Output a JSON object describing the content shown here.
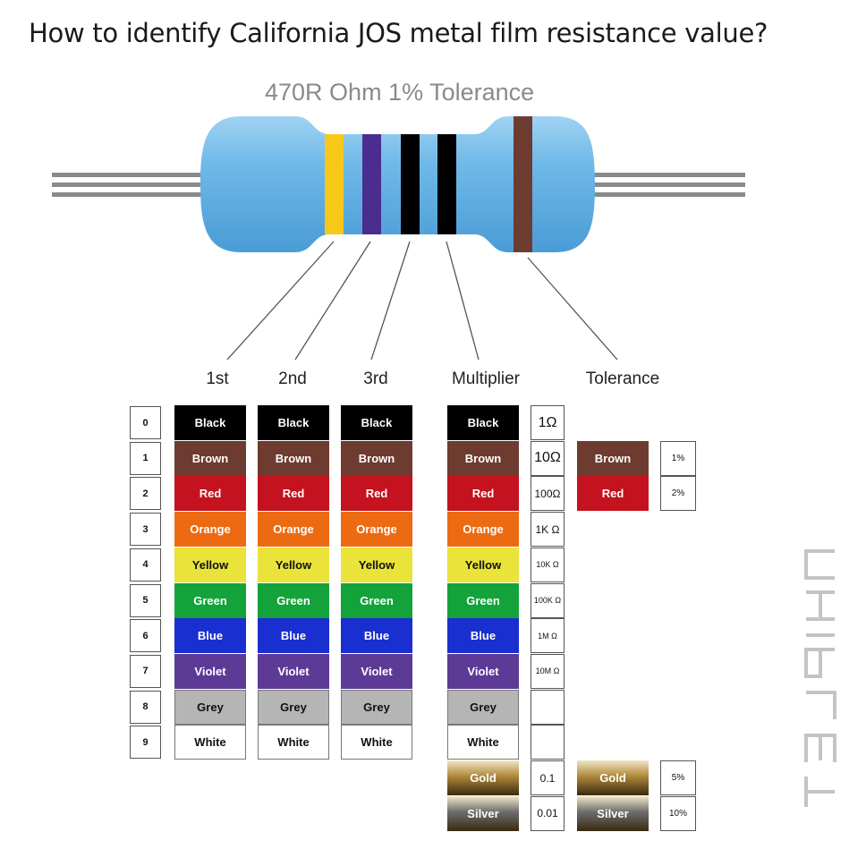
{
  "title": "How to identify California JOS metal film resistance value?",
  "resistor_label": "470R Ohm 1% Tolerance",
  "column_headers": [
    "1st",
    "2nd",
    "3rd",
    "Multiplier",
    "Tolerance"
  ],
  "digit_numbers": [
    "0",
    "1",
    "2",
    "3",
    "4",
    "5",
    "6",
    "7",
    "8",
    "9"
  ],
  "digit_bands": [
    {
      "label": "Black",
      "color": "#000000"
    },
    {
      "label": "Brown",
      "color": "#6e3b30"
    },
    {
      "label": "Red",
      "color": "#c4121e"
    },
    {
      "label": "Orange",
      "color": "#ec6b12"
    },
    {
      "label": "Yellow",
      "color": "#e9e33a"
    },
    {
      "label": "Green",
      "color": "#13a33a"
    },
    {
      "label": "Blue",
      "color": "#1a2fcf"
    },
    {
      "label": "Violet",
      "color": "#5c3a96"
    },
    {
      "label": "Grey",
      "color": "#b5b5b5"
    },
    {
      "label": "White",
      "color": "#ffffff"
    }
  ],
  "multiplier_values": [
    "1Ω",
    "10Ω",
    "100Ω",
    "1K Ω",
    "10K Ω",
    "100K Ω",
    "1M Ω",
    "10M Ω",
    "",
    ""
  ],
  "multiplier_extra": [
    {
      "label": "Gold",
      "value": "0.1",
      "color": "#b08a3a"
    },
    {
      "label": "Silver",
      "value": "0.01",
      "color": "#6d6d6d"
    }
  ],
  "tolerance": [
    {
      "label": "Brown",
      "value": "1%",
      "color": "#6e3b30"
    },
    {
      "label": "Red",
      "value": "2%",
      "color": "#c4121e"
    },
    {
      "label": "Gold",
      "value": "5%",
      "color": "#b08a3a"
    },
    {
      "label": "Silver",
      "value": "10%",
      "color": "#6d6d6d"
    }
  ],
  "resistor_bands": [
    "#f8c819",
    "#4a2d8e",
    "#000000",
    "#000000",
    "#6e3b30"
  ],
  "resistor_body_color": "#6fb9e8",
  "watermark": "CHIPLET"
}
